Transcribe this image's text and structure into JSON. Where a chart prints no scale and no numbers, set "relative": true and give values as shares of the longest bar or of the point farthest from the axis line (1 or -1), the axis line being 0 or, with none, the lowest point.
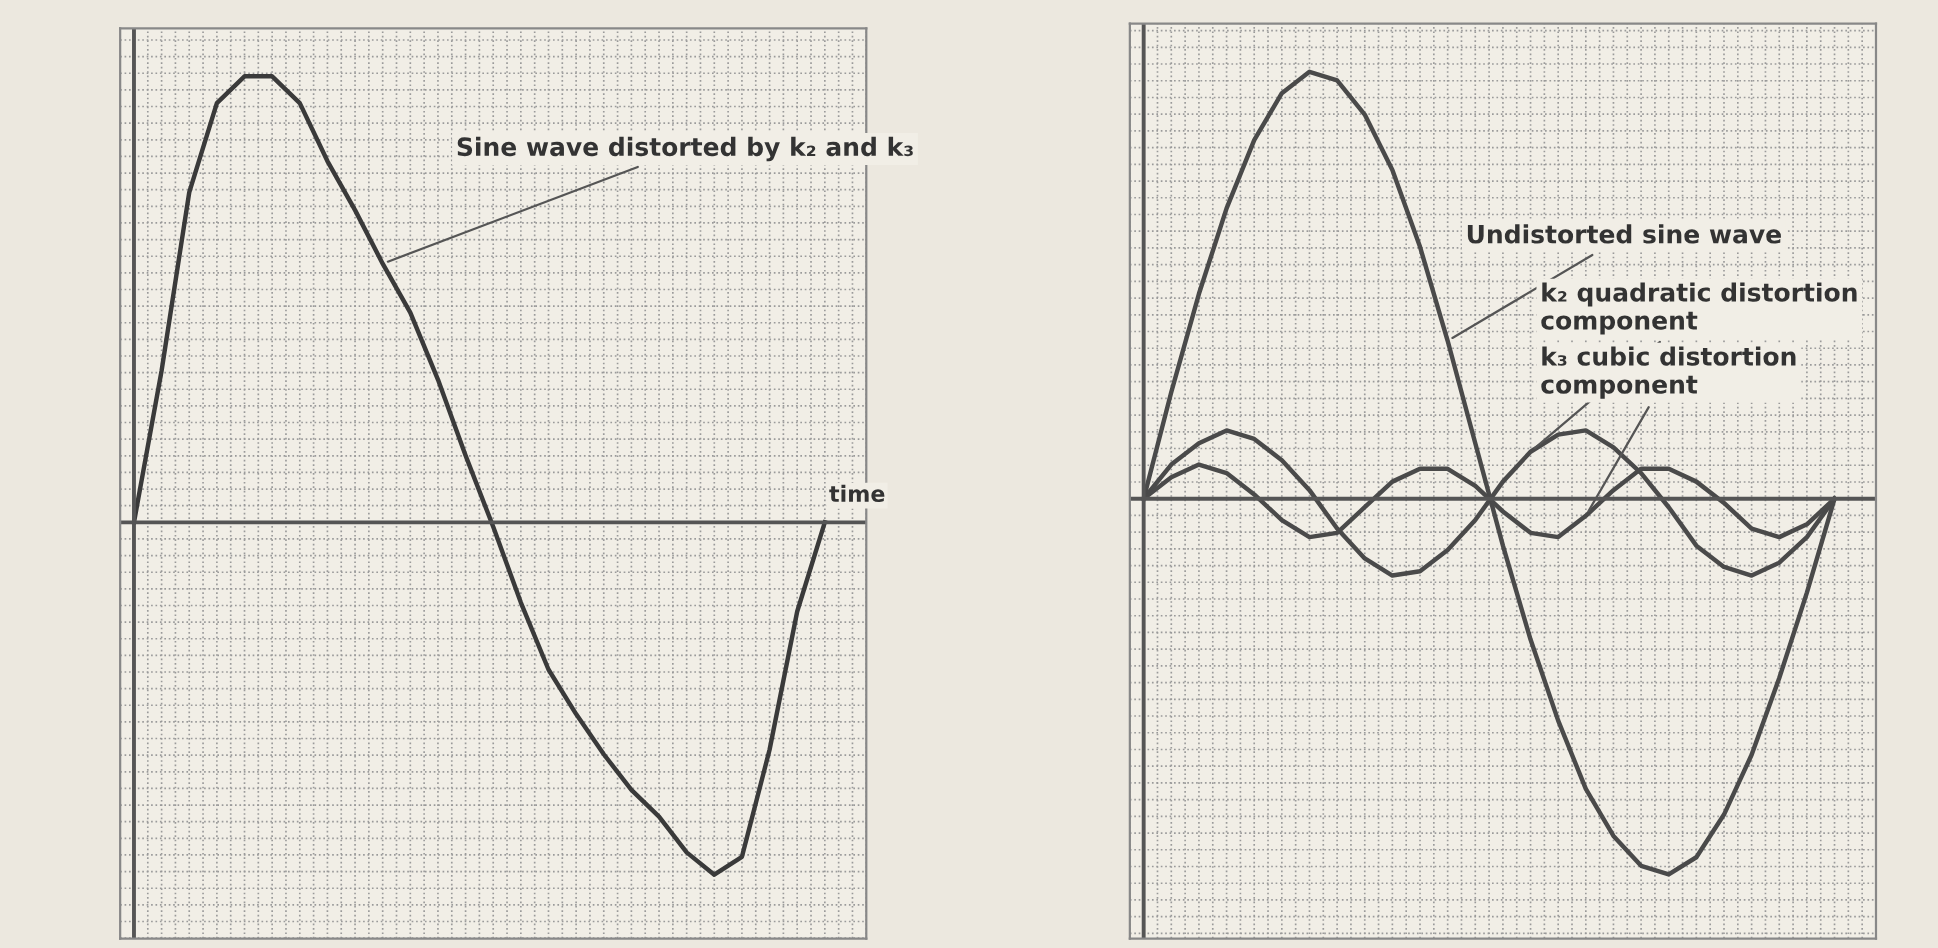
{
  "chart_data": [
    {
      "type": "line",
      "relative": true,
      "xlabel": "time",
      "grid": true,
      "tick_labels": false,
      "categories": [
        null,
        null,
        null,
        null,
        null,
        null,
        null,
        null,
        null,
        null,
        null,
        null,
        null,
        null,
        null,
        null,
        null,
        null,
        null,
        null,
        null,
        null,
        null,
        null,
        null,
        null
      ],
      "series": [
        {
          "name": "Sine wave distorted by k₂ and k₃",
          "color": "#3a3a3a",
          "values": [
            0,
            0.34,
            0.74,
            0.94,
            1.0,
            1.0,
            0.94,
            0.81,
            0.7,
            0.58,
            0.47,
            0.32,
            0.15,
            -0.01,
            -0.18,
            -0.33,
            -0.43,
            -0.52,
            -0.6,
            -0.66,
            -0.74,
            -0.79,
            -0.75,
            -0.51,
            -0.2,
            0
          ]
        }
      ]
    },
    {
      "type": "line",
      "relative": true,
      "grid": true,
      "tick_labels": false,
      "categories": [
        null,
        null,
        null,
        null,
        null,
        null,
        null,
        null,
        null,
        null,
        null,
        null,
        null,
        null,
        null,
        null,
        null,
        null,
        null,
        null,
        null,
        null,
        null,
        null,
        null,
        null
      ],
      "series": [
        {
          "name": "Undistorted sine wave",
          "color": "#4a4a4a",
          "values": [
            0,
            0.25,
            0.48,
            0.68,
            0.84,
            0.95,
            1.0,
            0.98,
            0.9,
            0.77,
            0.59,
            0.37,
            0.13,
            -0.11,
            -0.33,
            -0.52,
            -0.68,
            -0.79,
            -0.86,
            -0.88,
            -0.84,
            -0.74,
            -0.6,
            -0.42,
            -0.22,
            0
          ]
        },
        {
          "name": "k₂ quadratic distortion component",
          "color": "#4a4a4a",
          "values": [
            0,
            0.08,
            0.13,
            0.16,
            0.14,
            0.09,
            0.02,
            -0.07,
            -0.14,
            -0.18,
            -0.17,
            -0.12,
            -0.05,
            0.04,
            0.11,
            0.15,
            0.16,
            0.12,
            0.06,
            -0.02,
            -0.11,
            -0.16,
            -0.18,
            -0.15,
            -0.09,
            0
          ]
        },
        {
          "name": "k₃ cubic distortion component",
          "color": "#4a4a4a",
          "values": [
            0,
            0.05,
            0.08,
            0.06,
            0.01,
            -0.05,
            -0.09,
            -0.08,
            -0.02,
            0.04,
            0.07,
            0.07,
            0.03,
            -0.03,
            -0.08,
            -0.09,
            -0.04,
            0.02,
            0.07,
            0.07,
            0.04,
            -0.01,
            -0.07,
            -0.09,
            -0.06,
            0
          ]
        }
      ]
    }
  ]
}
